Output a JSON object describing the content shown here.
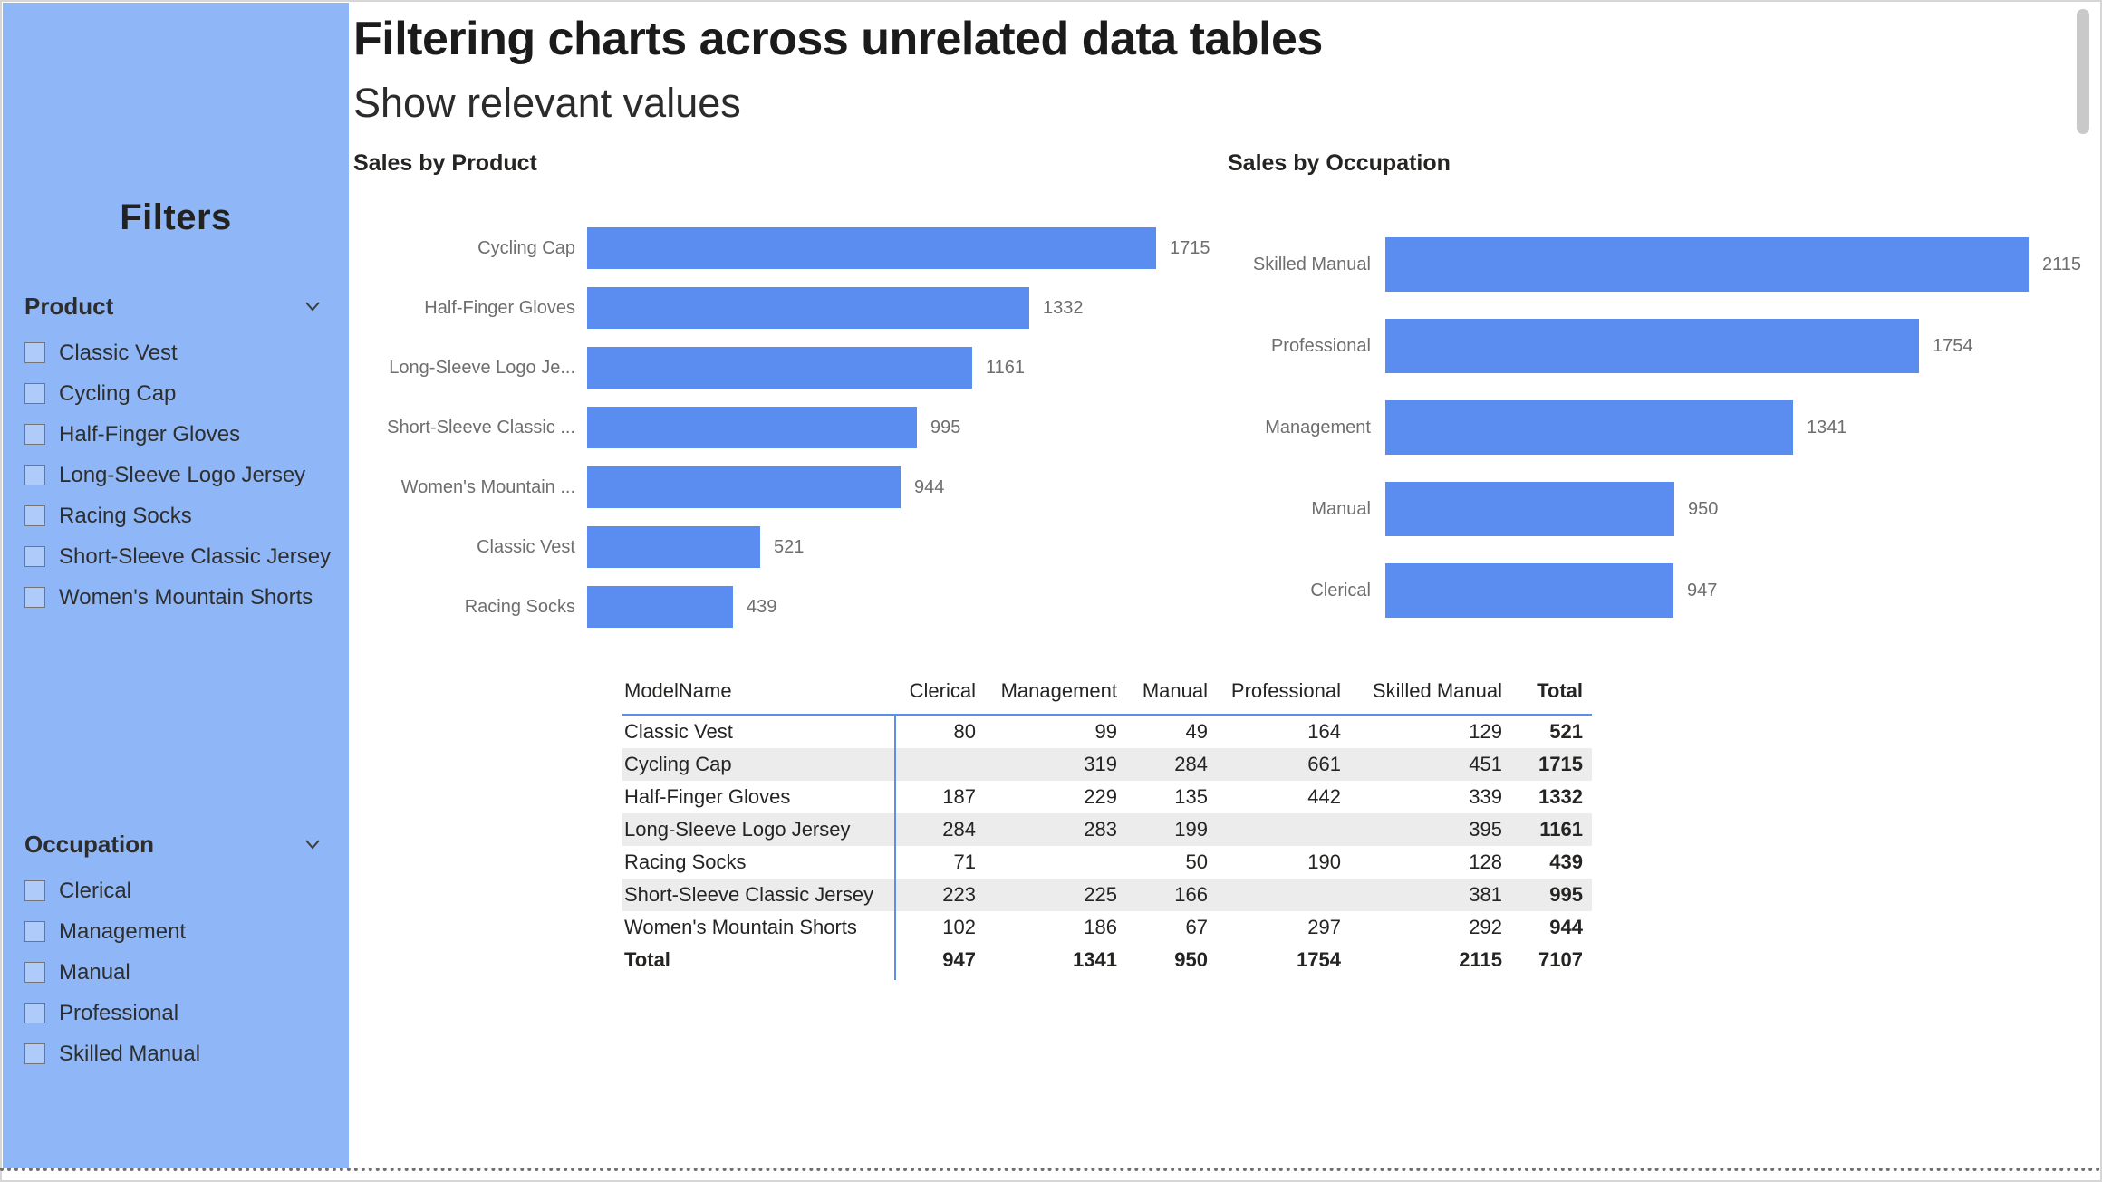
{
  "page": {
    "title": "Filtering charts across unrelated data tables",
    "subtitle": "Show relevant values"
  },
  "filters": {
    "title": "Filters",
    "sections": [
      {
        "label": "Product",
        "icon": "chevron-down-icon",
        "items": [
          "Classic Vest",
          "Cycling Cap",
          "Half-Finger Gloves",
          "Long-Sleeve Logo Jersey",
          "Racing Socks",
          "Short-Sleeve Classic Jersey",
          "Women's Mountain Shorts"
        ]
      },
      {
        "label": "Occupation",
        "icon": "chevron-down-icon",
        "items": [
          "Clerical",
          "Management",
          "Manual",
          "Professional",
          "Skilled Manual"
        ]
      }
    ]
  },
  "chart_data": [
    {
      "type": "bar",
      "orientation": "horizontal",
      "title": "Sales by Product",
      "categories": [
        "Cycling Cap",
        "Half-Finger Gloves",
        "Long-Sleeve Logo Je...",
        "Short-Sleeve Classic ...",
        "Women's Mountain ...",
        "Classic Vest",
        "Racing Socks"
      ],
      "values": [
        1715,
        1332,
        1161,
        995,
        944,
        521,
        439
      ],
      "data_labels": [
        "1715",
        "1332",
        "1161",
        "995",
        "944",
        "521",
        "439"
      ],
      "xlabel": "",
      "ylabel": "",
      "axis_visible": false,
      "legend": "none",
      "grid": false
    },
    {
      "type": "bar",
      "orientation": "horizontal",
      "title": "Sales by Occupation",
      "categories": [
        "Skilled Manual",
        "Professional",
        "Management",
        "Manual",
        "Clerical"
      ],
      "values": [
        2115,
        1754,
        1341,
        950,
        947
      ],
      "data_labels": [
        "2115",
        "1754",
        "1341",
        "950",
        "947"
      ],
      "xlabel": "",
      "ylabel": "",
      "axis_visible": false,
      "legend": "none",
      "grid": false
    }
  ],
  "matrix": {
    "columns": [
      "ModelName",
      "Clerical",
      "Management",
      "Manual",
      "Professional",
      "Skilled Manual",
      "Total"
    ],
    "rows": [
      {
        "name": "Classic Vest",
        "values": [
          "80",
          "99",
          "49",
          "164",
          "129",
          "521"
        ]
      },
      {
        "name": "Cycling Cap",
        "values": [
          "",
          "319",
          "284",
          "661",
          "451",
          "1715"
        ]
      },
      {
        "name": "Half-Finger Gloves",
        "values": [
          "187",
          "229",
          "135",
          "442",
          "339",
          "1332"
        ]
      },
      {
        "name": "Long-Sleeve Logo Jersey",
        "values": [
          "284",
          "283",
          "199",
          "",
          "395",
          "1161"
        ]
      },
      {
        "name": "Racing Socks",
        "values": [
          "71",
          "",
          "50",
          "190",
          "128",
          "439"
        ]
      },
      {
        "name": "Short-Sleeve Classic Jersey",
        "values": [
          "223",
          "225",
          "166",
          "",
          "381",
          "995"
        ]
      },
      {
        "name": "Women's Mountain Shorts",
        "values": [
          "102",
          "186",
          "67",
          "297",
          "292",
          "944"
        ]
      }
    ],
    "total_row": {
      "name": "Total",
      "values": [
        "947",
        "1341",
        "950",
        "1754",
        "2115",
        "7107"
      ]
    }
  },
  "colors": {
    "bar": "#5B8DF0",
    "sidebar_background": "#8FB7F7",
    "table_grid_blue": "#5E8FE8",
    "alt_row": "#ECECEC",
    "label_gray": "#6E6E6E",
    "text_dark": "#252423"
  }
}
